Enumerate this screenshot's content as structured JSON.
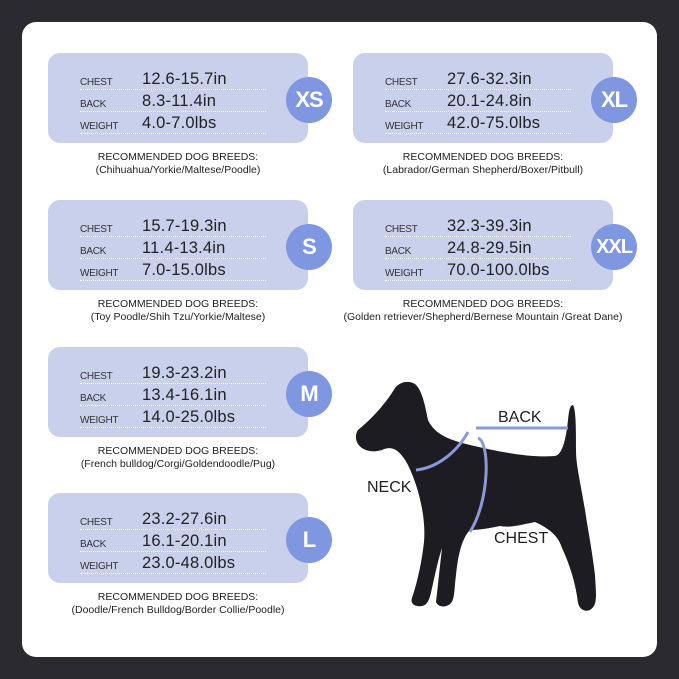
{
  "labels": {
    "chest": "CHEST",
    "back": "BACK",
    "weight": "WEIGHT",
    "recommended": "RECOMMENDED DOG BREEDS:"
  },
  "sizes": [
    {
      "size": "XS",
      "chest": "12.6-15.7in",
      "back": "8.3-11.4in",
      "weight": "4.0-7.0lbs",
      "breeds": "(Chihuahua/Yorkie/Maltese/Poodle)"
    },
    {
      "size": "S",
      "chest": "15.7-19.3in",
      "back": "11.4-13.4in",
      "weight": "7.0-15.0lbs",
      "breeds": "(Toy Poodle/Shih Tzu/Yorkie/Maltese)"
    },
    {
      "size": "M",
      "chest": "19.3-23.2in",
      "back": "13.4-16.1in",
      "weight": "14.0-25.0lbs",
      "breeds": "(French bulldog/Corgi/Goldendoodle/Pug)"
    },
    {
      "size": "L",
      "chest": "23.2-27.6in",
      "back": "16.1-20.1in",
      "weight": "23.0-48.0lbs",
      "breeds": "(Doodle/French Bulldog/Border Collie/Poodle)"
    },
    {
      "size": "XL",
      "chest": "27.6-32.3in",
      "back": "20.1-24.8in",
      "weight": "42.0-75.0lbs",
      "breeds": "(Labrador/German Shepherd/Boxer/Pitbull)"
    },
    {
      "size": "XXL",
      "chest": "32.3-39.3in",
      "back": "24.8-29.5in",
      "weight": "70.0-100.0lbs",
      "breeds": "(Golden retriever/Shepherd/Bernese Mountain /Great Dane)"
    }
  ],
  "diagram": {
    "back": "BACK",
    "neck": "NECK",
    "chest": "CHEST"
  },
  "colors": {
    "panel": "#c8d0ec",
    "badge": "#7f97e0",
    "measure_line": "#8a9ad8",
    "background": "#2b2a30"
  }
}
